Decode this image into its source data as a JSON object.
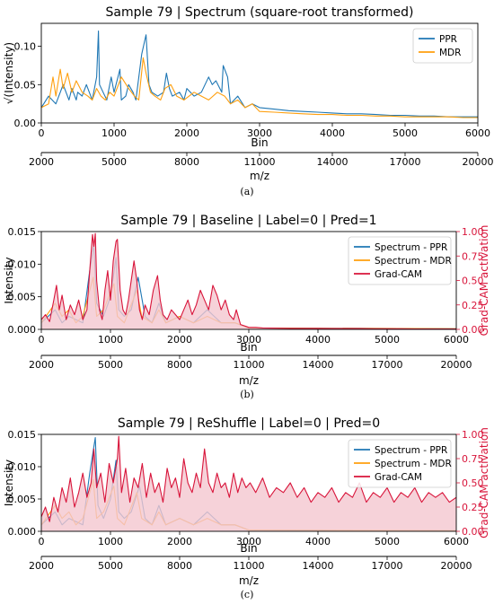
{
  "chart_data": [
    {
      "type": "line",
      "caption": "(a)",
      "title": "Sample 79 | Spectrum (square-root transformed)",
      "xlabel": "Bin",
      "ylabel": "√(Intensity)",
      "secondary_xlabel": "m/z",
      "xlim": [
        0,
        6000
      ],
      "ylim": [
        0,
        0.13
      ],
      "x_ticks": [
        "0",
        "1000",
        "2000",
        "3000",
        "4000",
        "5000",
        "6000"
      ],
      "y_ticks": [
        "0.00",
        "0.05",
        "0.10"
      ],
      "secondary_x_ticks": [
        "2000",
        "5000",
        "8000",
        "11000",
        "14000",
        "17000",
        "20000"
      ],
      "legend_position": "top-right",
      "series": [
        {
          "name": "PPR",
          "color": "#1f77b4",
          "x": [
            0,
            100,
            200,
            260,
            300,
            380,
            420,
            480,
            500,
            560,
            620,
            700,
            760,
            785,
            800,
            850,
            900,
            960,
            1000,
            1080,
            1100,
            1160,
            1200,
            1260,
            1300,
            1380,
            1440,
            1480,
            1520,
            1600,
            1680,
            1720,
            1760,
            1800,
            1900,
            1960,
            2000,
            2100,
            2200,
            2300,
            2350,
            2400,
            2480,
            2500,
            2560,
            2600,
            2700,
            2800,
            2900,
            3000,
            3200,
            3400,
            3600,
            3800,
            4000,
            4200,
            4400,
            4600,
            4800,
            5000,
            5200,
            5400,
            5600,
            5800,
            6000
          ],
          "values": [
            0.02,
            0.035,
            0.025,
            0.04,
            0.05,
            0.03,
            0.045,
            0.03,
            0.04,
            0.035,
            0.05,
            0.03,
            0.06,
            0.12,
            0.05,
            0.04,
            0.03,
            0.06,
            0.04,
            0.07,
            0.03,
            0.035,
            0.05,
            0.04,
            0.03,
            0.09,
            0.115,
            0.05,
            0.04,
            0.035,
            0.04,
            0.065,
            0.045,
            0.035,
            0.04,
            0.03,
            0.045,
            0.035,
            0.04,
            0.06,
            0.05,
            0.055,
            0.04,
            0.075,
            0.06,
            0.025,
            0.035,
            0.02,
            0.025,
            0.02,
            0.018,
            0.016,
            0.015,
            0.014,
            0.013,
            0.012,
            0.012,
            0.011,
            0.01,
            0.01,
            0.009,
            0.009,
            0.008,
            0.008,
            0.008
          ]
        },
        {
          "name": "MDR",
          "color": "#ff9f0e",
          "x": [
            0,
            100,
            160,
            200,
            260,
            300,
            360,
            420,
            480,
            560,
            640,
            700,
            760,
            820,
            880,
            940,
            1000,
            1100,
            1200,
            1280,
            1340,
            1400,
            1440,
            1500,
            1560,
            1640,
            1700,
            1780,
            1860,
            1960,
            2100,
            2200,
            2300,
            2420,
            2520,
            2600,
            2700,
            2800,
            2900,
            3000,
            3200,
            3400,
            3600,
            3800,
            4000,
            4200,
            4400,
            4600,
            4800,
            5000,
            5200,
            5400,
            5600,
            5800,
            6000
          ],
          "values": [
            0.02,
            0.025,
            0.06,
            0.035,
            0.07,
            0.045,
            0.065,
            0.04,
            0.055,
            0.04,
            0.035,
            0.03,
            0.045,
            0.035,
            0.03,
            0.04,
            0.035,
            0.06,
            0.045,
            0.035,
            0.03,
            0.085,
            0.065,
            0.04,
            0.035,
            0.03,
            0.045,
            0.05,
            0.035,
            0.03,
            0.04,
            0.035,
            0.03,
            0.04,
            0.035,
            0.025,
            0.03,
            0.02,
            0.025,
            0.015,
            0.014,
            0.013,
            0.012,
            0.011,
            0.011,
            0.01,
            0.01,
            0.009,
            0.009,
            0.008,
            0.008,
            0.008,
            0.008,
            0.007,
            0.007
          ]
        }
      ]
    },
    {
      "type": "line",
      "caption": "(b)",
      "title": "Sample 79 | Baseline | Label=0 | Pred=1",
      "xlabel": "Bin",
      "ylabel": "Intensity",
      "y2label": "Grad-CAM activation",
      "secondary_xlabel": "m/z",
      "xlim": [
        0,
        6000
      ],
      "ylim": [
        0,
        0.015
      ],
      "y2lim": [
        0,
        1.0
      ],
      "x_ticks": [
        "0",
        "1000",
        "2000",
        "3000",
        "4000",
        "5000",
        "6000"
      ],
      "y_ticks": [
        "0.000",
        "0.005",
        "0.010",
        "0.015"
      ],
      "y2_ticks": [
        "0.00",
        "0.25",
        "0.50",
        "0.75",
        "1.00"
      ],
      "secondary_x_ticks": [
        "2000",
        "5000",
        "8000",
        "11000",
        "14000",
        "17000",
        "20000"
      ],
      "legend_position": "top-right",
      "series": [
        {
          "name": "Spectrum - PPR",
          "color": "#1f77b4",
          "axis": "left",
          "x": [
            0,
            200,
            300,
            400,
            600,
            700,
            760,
            800,
            900,
            1000,
            1080,
            1120,
            1200,
            1300,
            1400,
            1500,
            1600,
            1700,
            1800,
            2000,
            2200,
            2400,
            2500,
            2600,
            2800,
            3000,
            6000
          ],
          "values": [
            0.001,
            0.003,
            0.001,
            0.002,
            0.001,
            0.009,
            0.013,
            0.004,
            0.002,
            0.005,
            0.011,
            0.003,
            0.002,
            0.003,
            0.008,
            0.002,
            0.001,
            0.004,
            0.001,
            0.002,
            0.001,
            0.003,
            0.002,
            0.001,
            0.001,
            0.0002,
            0.0001
          ]
        },
        {
          "name": "Spectrum - MDR",
          "color": "#ff9f0e",
          "axis": "left",
          "x": [
            0,
            200,
            300,
            400,
            500,
            600,
            750,
            800,
            900,
            1050,
            1100,
            1200,
            1380,
            1450,
            1600,
            1700,
            1800,
            2000,
            2200,
            2400,
            2600,
            2800,
            3000,
            6000
          ],
          "values": [
            0.001,
            0.004,
            0.002,
            0.003,
            0.001,
            0.002,
            0.008,
            0.002,
            0.003,
            0.007,
            0.002,
            0.001,
            0.006,
            0.002,
            0.001,
            0.003,
            0.001,
            0.002,
            0.001,
            0.002,
            0.001,
            0.001,
            0.0002,
            0.0001
          ]
        },
        {
          "name": "Grad-CAM",
          "color": "#d8143a",
          "axis": "right",
          "fill": "#f4c7cf",
          "x": [
            0,
            60,
            120,
            180,
            220,
            260,
            300,
            360,
            420,
            480,
            540,
            600,
            660,
            700,
            740,
            760,
            780,
            800,
            840,
            880,
            920,
            960,
            1000,
            1040,
            1080,
            1100,
            1140,
            1180,
            1220,
            1260,
            1300,
            1340,
            1380,
            1420,
            1460,
            1500,
            1560,
            1620,
            1680,
            1720,
            1760,
            1820,
            1880,
            1940,
            2000,
            2060,
            2120,
            2180,
            2240,
            2300,
            2360,
            2420,
            2480,
            2540,
            2600,
            2660,
            2720,
            2780,
            2820,
            2880,
            2960,
            3000,
            3100,
            3200,
            3400,
            3600,
            3800,
            4000,
            4200,
            4400,
            4600,
            4800,
            5000,
            5200,
            5400,
            5600,
            5800,
            6000
          ],
          "values": [
            0.1,
            0.15,
            0.08,
            0.3,
            0.45,
            0.2,
            0.35,
            0.1,
            0.25,
            0.15,
            0.3,
            0.1,
            0.2,
            0.6,
            0.97,
            0.85,
            0.98,
            0.5,
            0.2,
            0.1,
            0.4,
            0.6,
            0.3,
            0.7,
            0.9,
            0.92,
            0.4,
            0.2,
            0.15,
            0.3,
            0.5,
            0.7,
            0.5,
            0.2,
            0.1,
            0.25,
            0.15,
            0.4,
            0.55,
            0.3,
            0.15,
            0.1,
            0.2,
            0.15,
            0.1,
            0.2,
            0.3,
            0.15,
            0.25,
            0.4,
            0.3,
            0.2,
            0.45,
            0.35,
            0.2,
            0.3,
            0.15,
            0.1,
            0.2,
            0.05,
            0.03,
            0.02,
            0.02,
            0.015,
            0.012,
            0.01,
            0.01,
            0.01,
            0.008,
            0.008,
            0.008,
            0.006,
            0.006,
            0.006,
            0.005,
            0.005,
            0.005,
            0.005
          ]
        }
      ]
    },
    {
      "type": "line",
      "caption": "(c)",
      "title": "Sample 79 | ReShuffle | Label=0 | Pred=0",
      "xlabel": "Bin",
      "ylabel": "Intensity",
      "y2label": "Grad-CAM activation",
      "secondary_xlabel": "m/z",
      "xlim": [
        0,
        6000
      ],
      "ylim": [
        0,
        0.015
      ],
      "y2lim": [
        0,
        1.0
      ],
      "x_ticks": [
        "0",
        "1000",
        "2000",
        "3000",
        "4000",
        "5000",
        "6000"
      ],
      "y_ticks": [
        "0.000",
        "0.005",
        "0.010",
        "0.015"
      ],
      "y2_ticks": [
        "0.00",
        "0.25",
        "0.50",
        "0.75",
        "1.00"
      ],
      "secondary_x_ticks": [
        "2000",
        "5000",
        "8000",
        "11000",
        "14000",
        "17000",
        "20000"
      ],
      "legend_position": "top-right",
      "series": [
        {
          "name": "Spectrum - PPR",
          "color": "#1f77b4",
          "axis": "left",
          "x": [
            0,
            200,
            300,
            400,
            600,
            700,
            780,
            820,
            900,
            1000,
            1080,
            1120,
            1200,
            1300,
            1420,
            1500,
            1600,
            1700,
            1800,
            2000,
            2200,
            2400,
            2500,
            2600,
            2800,
            3000,
            6000
          ],
          "values": [
            0.001,
            0.003,
            0.001,
            0.002,
            0.001,
            0.009,
            0.0145,
            0.004,
            0.002,
            0.005,
            0.011,
            0.003,
            0.002,
            0.003,
            0.007,
            0.002,
            0.001,
            0.004,
            0.001,
            0.002,
            0.001,
            0.003,
            0.002,
            0.001,
            0.001,
            0.0002,
            0.0001
          ]
        },
        {
          "name": "Spectrum - MDR",
          "color": "#ff9f0e",
          "axis": "left",
          "x": [
            0,
            200,
            300,
            400,
            500,
            600,
            750,
            800,
            900,
            1050,
            1100,
            1200,
            1380,
            1450,
            1600,
            1700,
            1800,
            2000,
            2200,
            2400,
            2600,
            2800,
            3000,
            6000
          ],
          "values": [
            0.001,
            0.004,
            0.002,
            0.003,
            0.001,
            0.002,
            0.008,
            0.002,
            0.003,
            0.007,
            0.002,
            0.001,
            0.006,
            0.002,
            0.001,
            0.003,
            0.001,
            0.002,
            0.001,
            0.002,
            0.001,
            0.001,
            0.0002,
            0.0001
          ]
        },
        {
          "name": "Grad-CAM",
          "color": "#d8143a",
          "axis": "right",
          "fill": "#f4c7cf",
          "x": [
            0,
            60,
            120,
            180,
            240,
            300,
            360,
            420,
            480,
            540,
            600,
            660,
            720,
            760,
            800,
            860,
            920,
            980,
            1040,
            1100,
            1120,
            1160,
            1220,
            1280,
            1340,
            1400,
            1460,
            1520,
            1580,
            1640,
            1700,
            1760,
            1820,
            1880,
            1940,
            2000,
            2060,
            2120,
            2180,
            2240,
            2300,
            2360,
            2420,
            2480,
            2540,
            2600,
            2660,
            2720,
            2780,
            2840,
            2900,
            2960,
            3020,
            3100,
            3200,
            3300,
            3400,
            3500,
            3600,
            3700,
            3800,
            3900,
            4000,
            4100,
            4200,
            4300,
            4400,
            4500,
            4600,
            4700,
            4800,
            4900,
            5000,
            5100,
            5200,
            5300,
            5400,
            5500,
            5600,
            5700,
            5800,
            5900,
            6000
          ],
          "values": [
            0.15,
            0.25,
            0.1,
            0.35,
            0.2,
            0.45,
            0.3,
            0.55,
            0.25,
            0.4,
            0.6,
            0.35,
            0.5,
            0.85,
            0.45,
            0.6,
            0.3,
            0.7,
            0.5,
            0.75,
            0.98,
            0.4,
            0.65,
            0.3,
            0.55,
            0.45,
            0.7,
            0.35,
            0.6,
            0.4,
            0.5,
            0.3,
            0.65,
            0.45,
            0.55,
            0.35,
            0.75,
            0.5,
            0.4,
            0.6,
            0.45,
            0.85,
            0.5,
            0.4,
            0.6,
            0.45,
            0.5,
            0.35,
            0.6,
            0.4,
            0.55,
            0.45,
            0.5,
            0.4,
            0.55,
            0.35,
            0.45,
            0.4,
            0.5,
            0.35,
            0.45,
            0.3,
            0.4,
            0.35,
            0.45,
            0.3,
            0.4,
            0.35,
            0.5,
            0.3,
            0.4,
            0.35,
            0.45,
            0.3,
            0.4,
            0.35,
            0.45,
            0.3,
            0.4,
            0.35,
            0.4,
            0.3,
            0.35
          ]
        }
      ]
    }
  ]
}
